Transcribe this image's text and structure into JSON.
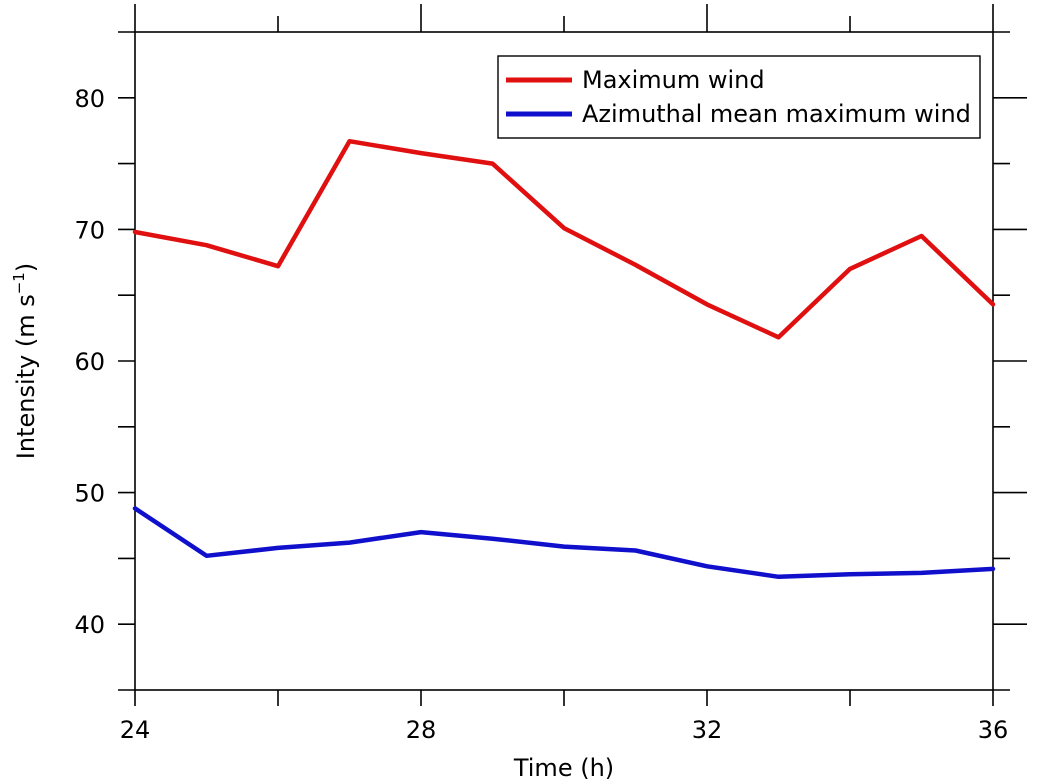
{
  "chart_data": {
    "type": "line",
    "title": "",
    "xlabel": "Time (h)",
    "ylabel_main": "Intensity (m s",
    "ylabel_sup": "−1",
    "ylabel_close": ")",
    "xlim": [
      24,
      36
    ],
    "ylim": [
      35,
      85
    ],
    "xticks_major": [
      24,
      28,
      32,
      36
    ],
    "xticks_minor": [
      26,
      30,
      34
    ],
    "yticks_major": [
      40,
      50,
      60,
      70,
      80
    ],
    "yticks_minor": [
      35,
      45,
      55,
      65,
      75,
      85
    ],
    "legend_position": "top-right",
    "grid": false,
    "x": [
      24,
      25,
      26,
      27,
      28,
      29,
      30,
      31,
      32,
      33,
      34,
      35,
      36
    ],
    "series": [
      {
        "name": "Maximum wind",
        "color": "#e01010",
        "values": [
          69.8,
          68.8,
          67.2,
          76.7,
          75.8,
          75.0,
          70.1,
          67.3,
          64.3,
          61.8,
          67.0,
          69.5,
          64.3
        ]
      },
      {
        "name": "Azimuthal mean maximum wind",
        "color": "#1010cc",
        "values": [
          48.8,
          45.2,
          45.8,
          46.2,
          47.0,
          46.5,
          45.9,
          45.6,
          44.4,
          43.6,
          43.8,
          43.9,
          44.2
        ]
      }
    ]
  }
}
